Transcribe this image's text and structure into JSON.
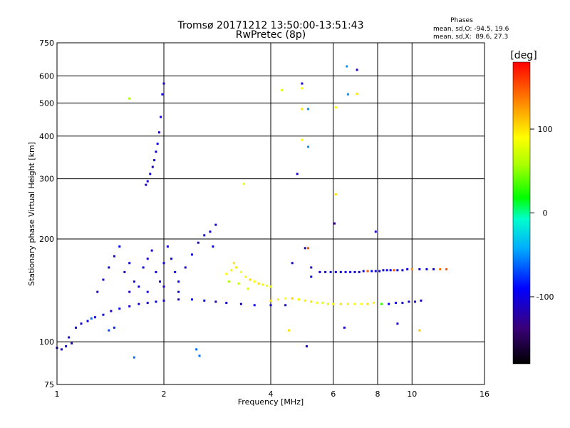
{
  "chart_data": {
    "type": "scatter",
    "title": "Tromsø 20171212 13:50:00-13:51:43",
    "subtitle": "RwPretec (8p)",
    "xlabel": "Frequency [MHz]",
    "ylabel": "Stationary phase Virtual Height [km]",
    "x_scale": "log",
    "y_scale": "log",
    "xlim": [
      1,
      16
    ],
    "ylim": [
      75,
      750
    ],
    "x_ticks": [
      1,
      2,
      4,
      6,
      8,
      10,
      16
    ],
    "x_tick_labels": [
      "1",
      "2",
      "4",
      "6",
      "8",
      "10",
      "16"
    ],
    "y_ticks": [
      75,
      100,
      200,
      300,
      400,
      500,
      600,
      750
    ],
    "y_tick_labels": [
      "75",
      "100",
      "200",
      "300",
      "400",
      "500",
      "600",
      "750"
    ],
    "grid": true,
    "phase_info": {
      "title": "Phases",
      "line_o": "mean, sd,O: -94.5, 19.6",
      "line_x": "mean, sd,X:  89.6, 27.3"
    },
    "colorbar": {
      "label": "[deg]",
      "range": [
        -180,
        180
      ],
      "ticks": [
        100,
        0,
        -100
      ],
      "tick_labels": [
        "100",
        "0",
        "-100"
      ]
    },
    "series": [
      {
        "points": [
          [
            1.0,
            96,
            -110
          ],
          [
            1.03,
            95,
            -105
          ],
          [
            1.06,
            97,
            -95
          ],
          [
            1.1,
            99,
            -110
          ],
          [
            1.08,
            103,
            -100
          ],
          [
            1.13,
            110,
            -100
          ],
          [
            1.17,
            113,
            -105
          ],
          [
            1.22,
            115,
            -98
          ],
          [
            1.28,
            118,
            -108
          ],
          [
            1.35,
            120,
            -100
          ],
          [
            1.42,
            123,
            -110
          ],
          [
            1.5,
            125,
            -95
          ],
          [
            1.6,
            127,
            -105
          ],
          [
            1.7,
            129,
            -100
          ],
          [
            1.8,
            130,
            -108
          ],
          [
            1.9,
            131,
            -95
          ],
          [
            2.0,
            132,
            -100
          ],
          [
            2.2,
            133,
            -105
          ],
          [
            2.4,
            133,
            -100
          ],
          [
            2.6,
            132,
            -95
          ],
          [
            2.8,
            131,
            -110
          ],
          [
            3.0,
            130,
            -105
          ],
          [
            3.3,
            129,
            -100
          ],
          [
            3.6,
            128,
            -98
          ],
          [
            4.0,
            128,
            -105
          ],
          [
            4.4,
            128,
            -100
          ],
          [
            1.25,
            117,
            -60
          ],
          [
            1.4,
            108,
            -70
          ],
          [
            1.45,
            110,
            -80
          ],
          [
            1.3,
            140,
            -110
          ],
          [
            1.35,
            152,
            -105
          ],
          [
            1.4,
            165,
            -100
          ],
          [
            1.45,
            178,
            -108
          ],
          [
            1.5,
            190,
            -95
          ],
          [
            1.55,
            160,
            -110
          ],
          [
            1.6,
            170,
            -100
          ],
          [
            1.65,
            150,
            -105
          ],
          [
            1.7,
            145,
            -95
          ],
          [
            1.75,
            165,
            -100
          ],
          [
            1.8,
            175,
            -108
          ],
          [
            1.85,
            185,
            -105
          ],
          [
            1.9,
            160,
            -100
          ],
          [
            1.95,
            150,
            -110
          ],
          [
            2.0,
            170,
            -95
          ],
          [
            2.05,
            190,
            -105
          ],
          [
            2.1,
            175,
            -100
          ],
          [
            2.15,
            160,
            -108
          ],
          [
            2.2,
            150,
            -95
          ],
          [
            2.3,
            165,
            -105
          ],
          [
            2.4,
            180,
            -100
          ],
          [
            2.5,
            195,
            -110
          ],
          [
            2.6,
            205,
            -105
          ],
          [
            2.7,
            210,
            -100
          ],
          [
            2.75,
            190,
            -98
          ],
          [
            2.8,
            220,
            -105
          ],
          [
            2.2,
            140,
            -100
          ],
          [
            1.6,
            140,
            -110
          ],
          [
            1.8,
            140,
            -105
          ],
          [
            2.0,
            145,
            -110
          ]
        ]
      },
      {
        "points": [
          [
            1.78,
            288,
            -110
          ],
          [
            1.8,
            295,
            -105
          ],
          [
            1.83,
            310,
            -100
          ],
          [
            1.86,
            325,
            -108
          ],
          [
            1.88,
            340,
            -95
          ],
          [
            1.9,
            360,
            -105
          ],
          [
            1.92,
            380,
            -100
          ],
          [
            1.94,
            410,
            -110
          ],
          [
            1.96,
            455,
            -105
          ],
          [
            1.98,
            530,
            -100
          ],
          [
            2.0,
            570,
            -108
          ],
          [
            1.6,
            515,
            60
          ],
          [
            1.65,
            90,
            -60
          ],
          [
            2.47,
            95,
            -60
          ],
          [
            2.52,
            91,
            -60
          ],
          [
            3.36,
            290,
            80
          ]
        ]
      },
      {
        "points": [
          [
            3.0,
            158,
            90
          ],
          [
            3.1,
            162,
            95
          ],
          [
            3.2,
            165,
            100
          ],
          [
            3.3,
            160,
            85
          ],
          [
            3.4,
            155,
            95
          ],
          [
            3.5,
            152,
            105
          ],
          [
            3.6,
            150,
            90
          ],
          [
            3.7,
            148,
            100
          ],
          [
            3.8,
            147,
            95
          ],
          [
            3.9,
            146,
            85
          ],
          [
            4.0,
            145,
            90
          ],
          [
            3.05,
            150,
            60
          ],
          [
            3.25,
            148,
            70
          ],
          [
            3.45,
            143,
            80
          ],
          [
            3.15,
            170,
            100
          ]
        ]
      },
      {
        "points": [
          [
            4.0,
            132,
            100
          ],
          [
            4.2,
            133,
            95
          ],
          [
            4.4,
            134,
            90
          ],
          [
            4.6,
            134,
            105
          ],
          [
            4.8,
            133,
            85
          ],
          [
            5.0,
            132,
            95
          ],
          [
            5.2,
            131,
            100
          ],
          [
            5.4,
            130,
            90
          ],
          [
            5.6,
            130,
            80
          ],
          [
            5.8,
            129,
            95
          ],
          [
            6.0,
            129,
            90
          ],
          [
            6.3,
            129,
            100
          ],
          [
            6.6,
            129,
            95
          ],
          [
            6.9,
            129,
            85
          ],
          [
            7.2,
            129,
            90
          ],
          [
            7.5,
            129,
            100
          ],
          [
            7.8,
            130,
            95
          ],
          [
            8.2,
            129,
            30
          ],
          [
            8.6,
            129,
            -100
          ],
          [
            9.0,
            130,
            -105
          ],
          [
            9.4,
            130,
            -100
          ],
          [
            9.8,
            131,
            -110
          ],
          [
            10.2,
            131,
            -100
          ],
          [
            10.6,
            132,
            -105
          ]
        ]
      },
      {
        "points": [
          [
            5.5,
            160,
            -100
          ],
          [
            5.7,
            160,
            -105
          ],
          [
            5.9,
            160,
            -100
          ],
          [
            6.1,
            160,
            -110
          ],
          [
            6.3,
            160,
            -95
          ],
          [
            6.5,
            160,
            -100
          ],
          [
            6.7,
            160,
            -105
          ],
          [
            6.9,
            160,
            -100
          ],
          [
            7.1,
            160,
            -110
          ],
          [
            7.3,
            161,
            -100
          ],
          [
            7.5,
            161,
            150
          ],
          [
            7.7,
            161,
            -100
          ],
          [
            7.9,
            161,
            -105
          ],
          [
            8.1,
            161,
            -100
          ],
          [
            8.3,
            162,
            -110
          ],
          [
            8.5,
            162,
            -100
          ],
          [
            8.7,
            162,
            -95
          ],
          [
            8.9,
            162,
            150
          ],
          [
            9.1,
            162,
            -100
          ],
          [
            9.4,
            162,
            -105
          ],
          [
            9.7,
            163,
            -100
          ],
          [
            10.0,
            163,
            130
          ],
          [
            10.5,
            163,
            -100
          ],
          [
            11.0,
            163,
            -95
          ],
          [
            11.5,
            163,
            -100
          ],
          [
            12.0,
            163,
            140
          ],
          [
            12.5,
            163,
            150
          ]
        ]
      },
      {
        "points": [
          [
            4.3,
            545,
            80
          ],
          [
            4.9,
            570,
            -110
          ],
          [
            4.9,
            552,
            90
          ],
          [
            4.9,
            480,
            100
          ],
          [
            5.1,
            480,
            -50
          ],
          [
            4.9,
            390,
            90
          ],
          [
            5.1,
            372,
            -50
          ],
          [
            4.75,
            310,
            -110
          ],
          [
            5.0,
            188,
            -110
          ],
          [
            5.1,
            188,
            150
          ],
          [
            4.6,
            170,
            -100
          ],
          [
            5.2,
            165,
            -105
          ],
          [
            5.2,
            155,
            -100
          ],
          [
            6.1,
            485,
            90
          ],
          [
            6.1,
            270,
            100
          ],
          [
            6.05,
            222,
            -130
          ],
          [
            6.55,
            640,
            -50
          ],
          [
            7.0,
            625,
            -110
          ],
          [
            6.6,
            530,
            -50
          ],
          [
            7.0,
            532,
            100
          ],
          [
            7.9,
            210,
            -110
          ],
          [
            6.45,
            110,
            -110
          ],
          [
            5.05,
            97,
            -110
          ],
          [
            4.5,
            108,
            100
          ],
          [
            9.1,
            113,
            -110
          ],
          [
            10.5,
            108,
            110
          ]
        ]
      }
    ]
  }
}
